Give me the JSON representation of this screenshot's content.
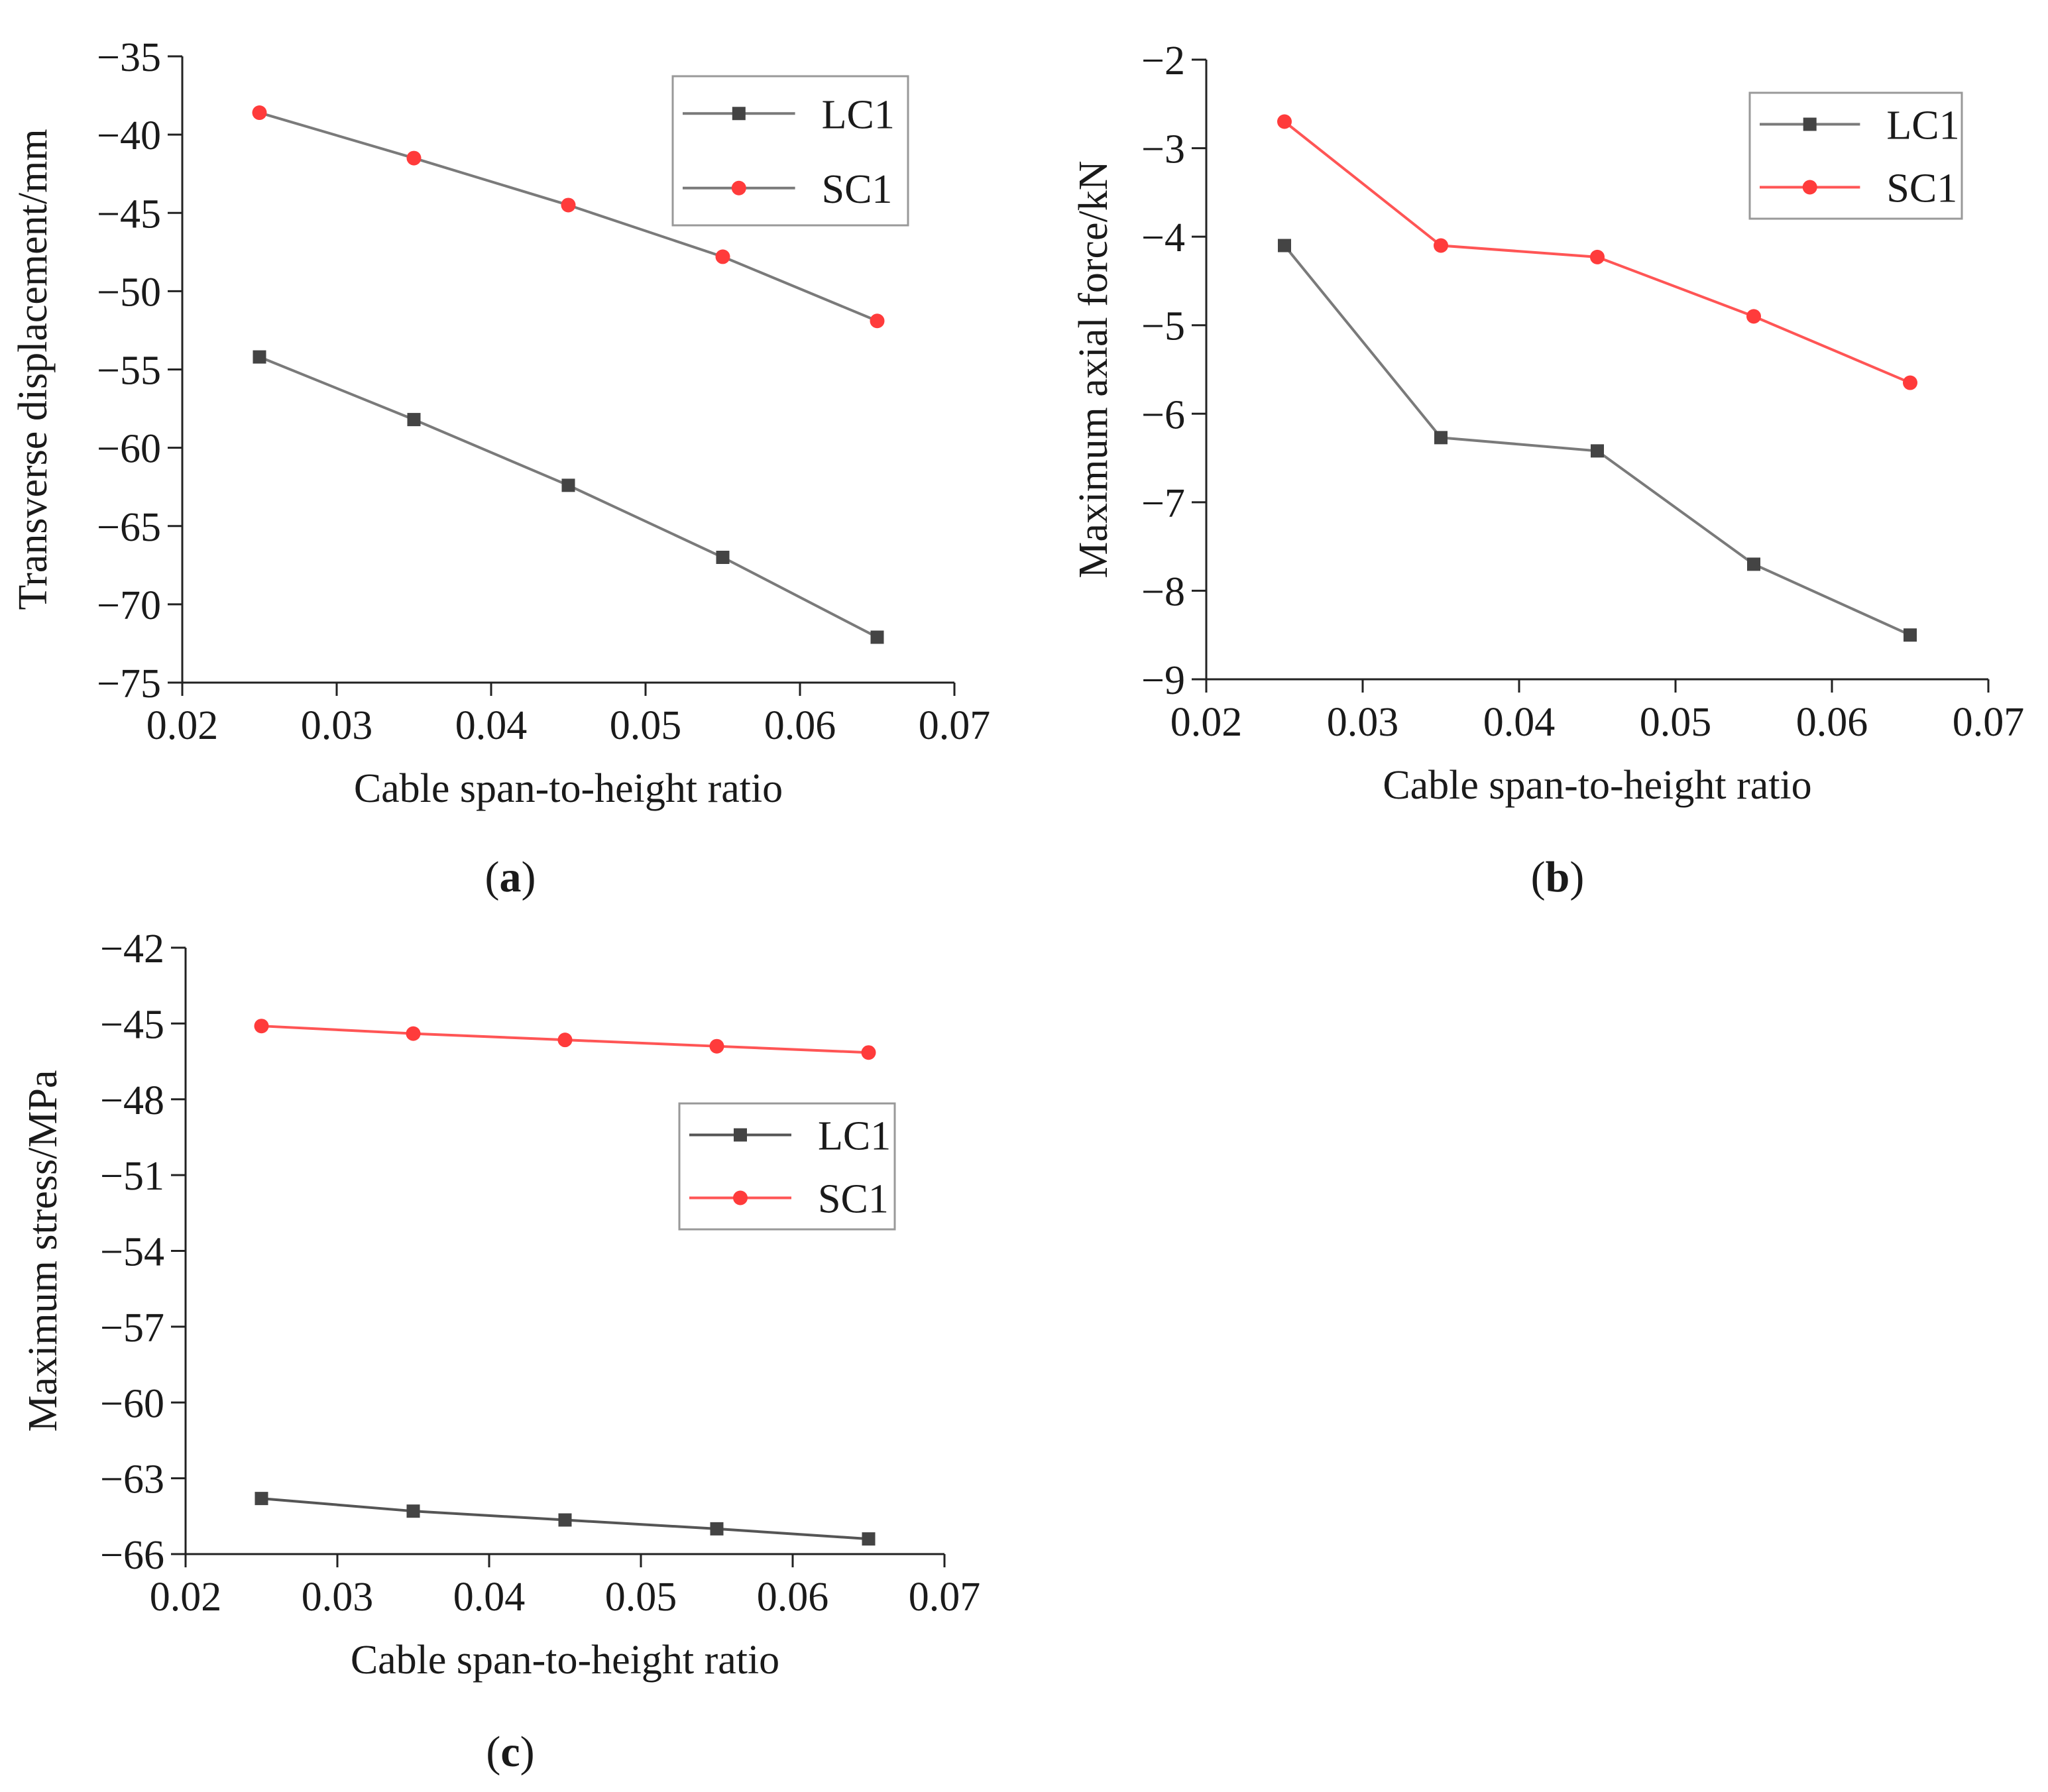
{
  "chart_data": [
    {
      "id": "a",
      "panel_label": "a",
      "type": "line",
      "xlabel": "Cable span-to-height ratio",
      "ylabel": "Transverse displacement/mm",
      "xlim": [
        0.02,
        0.07
      ],
      "ylim": [
        -75,
        -35
      ],
      "xticks": [
        "0.02",
        "0.03",
        "0.04",
        "0.05",
        "0.06",
        "0.07"
      ],
      "yticks": [
        "−35",
        "−40",
        "−45",
        "−50",
        "−55",
        "−60",
        "−65",
        "−70",
        "−75"
      ],
      "yticks_values": [
        -35,
        -40,
        -45,
        -50,
        -55,
        -60,
        -65,
        -70,
        -75
      ],
      "xticks_values": [
        0.02,
        0.03,
        0.04,
        0.05,
        0.06,
        0.07
      ],
      "legend_position": "top-right",
      "x": [
        0.025,
        0.035,
        0.045,
        0.055,
        0.065
      ],
      "series": [
        {
          "name": "LC1",
          "marker": "square",
          "color": "#444444",
          "line_color": "#7a7a7a",
          "values": [
            -54.2,
            -58.2,
            -62.4,
            -67.0,
            -72.1
          ]
        },
        {
          "name": "SC1",
          "marker": "circle",
          "color": "#ff3b3b",
          "line_color": "#7a7a7a",
          "values": [
            -38.6,
            -41.5,
            -44.5,
            -47.8,
            -51.9
          ]
        }
      ]
    },
    {
      "id": "b",
      "panel_label": "b",
      "type": "line",
      "xlabel": "Cable span-to-height ratio",
      "ylabel": "Maximum axial force/kN",
      "xlim": [
        0.02,
        0.07
      ],
      "ylim": [
        -9,
        -2
      ],
      "xticks": [
        "0.02",
        "0.03",
        "0.04",
        "0.05",
        "0.06",
        "0.07"
      ],
      "yticks": [
        "−2",
        "−3",
        "−4",
        "−5",
        "−6",
        "−7",
        "−8",
        "−9"
      ],
      "yticks_values": [
        -2,
        -3,
        -4,
        -5,
        -6,
        -7,
        -8,
        -9
      ],
      "xticks_values": [
        0.02,
        0.03,
        0.04,
        0.05,
        0.06,
        0.07
      ],
      "legend_position": "top-right",
      "x": [
        0.025,
        0.035,
        0.045,
        0.055,
        0.065
      ],
      "series": [
        {
          "name": "LC1",
          "marker": "square",
          "color": "#444444",
          "line_color": "#7a7a7a",
          "values": [
            -4.1,
            -6.27,
            -6.42,
            -7.7,
            -8.5
          ]
        },
        {
          "name": "SC1",
          "marker": "circle",
          "color": "#ff3b3b",
          "line_color": "#ff5555",
          "values": [
            -2.7,
            -4.1,
            -4.23,
            -4.9,
            -5.65
          ]
        }
      ]
    },
    {
      "id": "c",
      "panel_label": "c",
      "type": "line",
      "xlabel": "Cable span-to-height ratio",
      "ylabel": "Maximum stress/MPa",
      "xlim": [
        0.02,
        0.07
      ],
      "ylim": [
        -66,
        -42
      ],
      "xticks": [
        "0.02",
        "0.03",
        "0.04",
        "0.05",
        "0.06",
        "0.07"
      ],
      "yticks": [
        "−42",
        "−45",
        "−48",
        "−51",
        "−54",
        "−57",
        "−60",
        "−63",
        "−66"
      ],
      "yticks_values": [
        -42,
        -45,
        -48,
        -51,
        -54,
        -57,
        -60,
        -63,
        -66
      ],
      "xticks_values": [
        0.02,
        0.03,
        0.04,
        0.05,
        0.06,
        0.07
      ],
      "legend_position": "center-right",
      "x": [
        0.025,
        0.035,
        0.045,
        0.055,
        0.065
      ],
      "series": [
        {
          "name": "LC1",
          "marker": "square",
          "color": "#444444",
          "line_color": "#555555",
          "values": [
            -63.8,
            -64.3,
            -64.65,
            -65.0,
            -65.4
          ]
        },
        {
          "name": "SC1",
          "marker": "circle",
          "color": "#ff3b3b",
          "line_color": "#ff5555",
          "values": [
            -45.1,
            -45.4,
            -45.65,
            -45.9,
            -46.15
          ]
        }
      ]
    }
  ]
}
